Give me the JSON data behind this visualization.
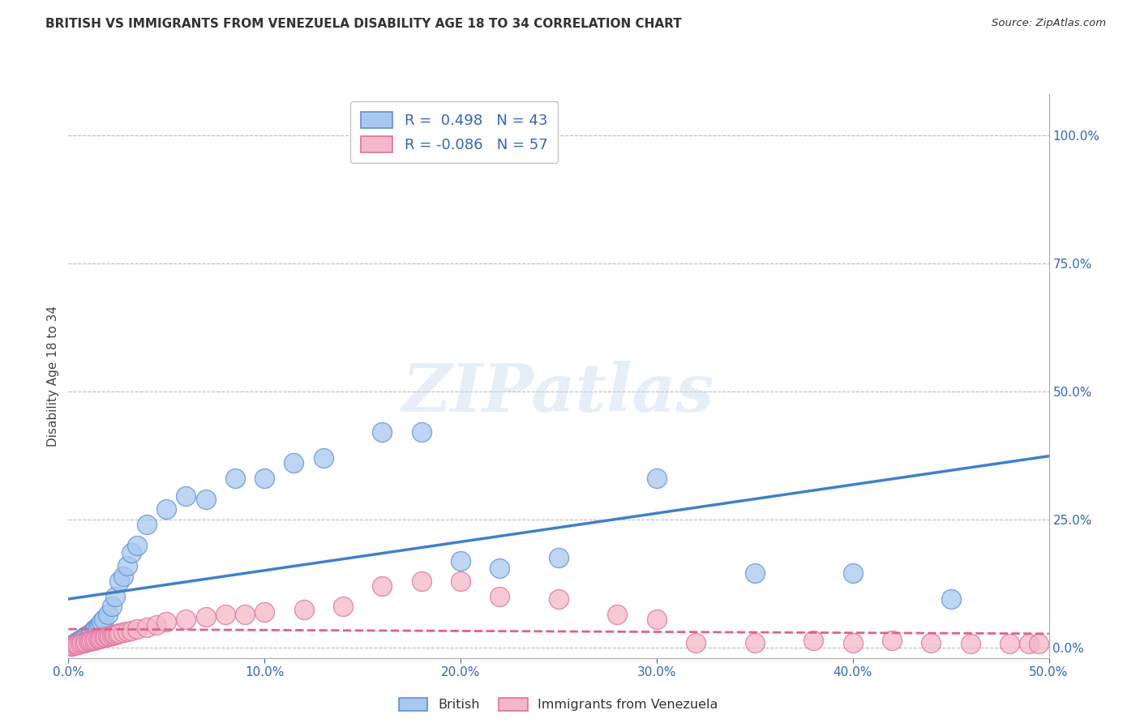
{
  "title": "BRITISH VS IMMIGRANTS FROM VENEZUELA DISABILITY AGE 18 TO 34 CORRELATION CHART",
  "source": "Source: ZipAtlas.com",
  "ylabel": "Disability Age 18 to 34",
  "watermark": "ZIPatlas",
  "xlim": [
    0.0,
    0.5
  ],
  "ylim": [
    -0.02,
    1.08
  ],
  "xticks": [
    0.0,
    0.1,
    0.2,
    0.3,
    0.4,
    0.5
  ],
  "xtick_labels": [
    "0.0%",
    "10.0%",
    "20.0%",
    "30.0%",
    "40.0%",
    "50.0%"
  ],
  "yticks_right": [
    0.0,
    0.25,
    0.5,
    0.75,
    1.0
  ],
  "ytick_labels_right": [
    "0.0%",
    "25.0%",
    "50.0%",
    "75.0%",
    "100.0%"
  ],
  "blue_R": 0.498,
  "blue_N": 43,
  "pink_R": -0.086,
  "pink_N": 57,
  "blue_color": "#A8C8F0",
  "pink_color": "#F4B8C8",
  "blue_edge_color": "#6090D0",
  "pink_edge_color": "#E070A0",
  "blue_line_color": "#4080C8",
  "pink_line_color": "#E06090",
  "legend_label_blue": "British",
  "legend_label_pink": "Immigrants from Venezuela",
  "blue_points_x": [
    0.001,
    0.002,
    0.003,
    0.004,
    0.005,
    0.006,
    0.007,
    0.008,
    0.009,
    0.01,
    0.011,
    0.012,
    0.013,
    0.014,
    0.015,
    0.016,
    0.017,
    0.018,
    0.02,
    0.022,
    0.024,
    0.026,
    0.028,
    0.03,
    0.032,
    0.035,
    0.04,
    0.05,
    0.06,
    0.07,
    0.085,
    0.1,
    0.115,
    0.13,
    0.16,
    0.18,
    0.2,
    0.22,
    0.25,
    0.3,
    0.35,
    0.4,
    0.45
  ],
  "blue_points_y": [
    0.005,
    0.005,
    0.008,
    0.01,
    0.012,
    0.015,
    0.018,
    0.02,
    0.022,
    0.025,
    0.025,
    0.03,
    0.035,
    0.038,
    0.042,
    0.045,
    0.05,
    0.055,
    0.065,
    0.08,
    0.1,
    0.13,
    0.14,
    0.16,
    0.185,
    0.2,
    0.24,
    0.27,
    0.295,
    0.29,
    0.33,
    0.33,
    0.36,
    0.37,
    0.42,
    0.42,
    0.17,
    0.155,
    0.175,
    0.33,
    0.145,
    0.145,
    0.095
  ],
  "pink_points_x": [
    0.001,
    0.002,
    0.003,
    0.004,
    0.005,
    0.006,
    0.007,
    0.008,
    0.009,
    0.01,
    0.011,
    0.012,
    0.013,
    0.014,
    0.015,
    0.016,
    0.017,
    0.018,
    0.019,
    0.02,
    0.021,
    0.022,
    0.023,
    0.024,
    0.025,
    0.026,
    0.028,
    0.03,
    0.032,
    0.035,
    0.04,
    0.045,
    0.05,
    0.06,
    0.07,
    0.08,
    0.09,
    0.1,
    0.12,
    0.14,
    0.16,
    0.18,
    0.2,
    0.22,
    0.25,
    0.28,
    0.3,
    0.32,
    0.35,
    0.38,
    0.4,
    0.42,
    0.44,
    0.46,
    0.48,
    0.49,
    0.495
  ],
  "pink_points_y": [
    0.003,
    0.004,
    0.005,
    0.006,
    0.007,
    0.008,
    0.009,
    0.01,
    0.011,
    0.012,
    0.013,
    0.014,
    0.015,
    0.016,
    0.017,
    0.018,
    0.019,
    0.02,
    0.021,
    0.022,
    0.023,
    0.024,
    0.025,
    0.026,
    0.027,
    0.028,
    0.03,
    0.032,
    0.034,
    0.036,
    0.04,
    0.045,
    0.05,
    0.055,
    0.06,
    0.065,
    0.065,
    0.07,
    0.075,
    0.08,
    0.12,
    0.13,
    0.13,
    0.1,
    0.095,
    0.065,
    0.055,
    0.01,
    0.01,
    0.015,
    0.01,
    0.015,
    0.01,
    0.008,
    0.008,
    0.008,
    0.008
  ],
  "background_color": "#FFFFFF",
  "grid_color": "#BBBBBB"
}
